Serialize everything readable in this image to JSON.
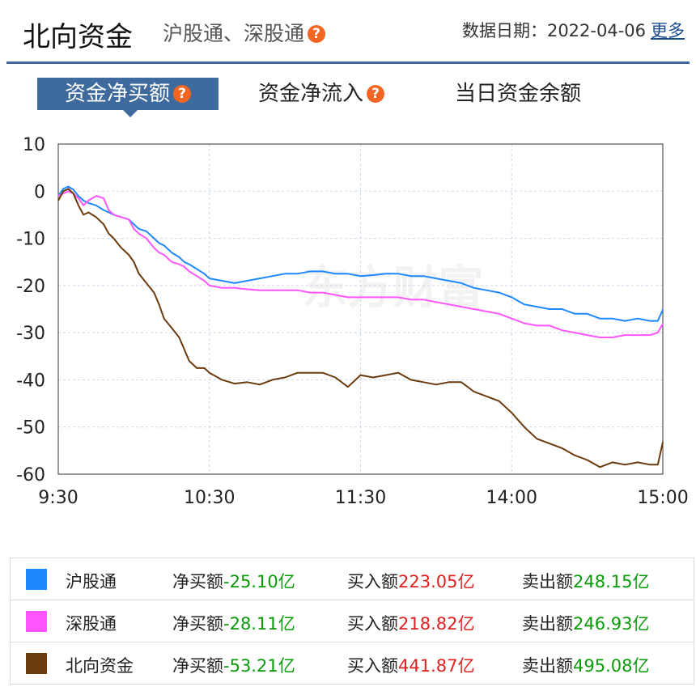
{
  "header": {
    "title": "北向资金",
    "subtitle": "沪股通、深股通",
    "date_label": "数据日期：",
    "date_value": "2022-04-06",
    "more_label": "更多"
  },
  "tabs": [
    {
      "label": "资金净买额",
      "active": true
    },
    {
      "label": "资金净流入",
      "active": false
    },
    {
      "label": "当日资金余额",
      "active": false
    }
  ],
  "watermark": "东方财富",
  "colors": {
    "accent": "#3e6a9d",
    "help_icon": "#f26522",
    "positive": "#e02020",
    "negative": "#0a9a0a"
  },
  "chart_data": {
    "type": "line",
    "x_ticks": [
      "9:30",
      "10:30",
      "11:30",
      "14:00",
      "15:00"
    ],
    "y_ticks": [
      10,
      0,
      -10,
      -20,
      -30,
      -40,
      -50,
      -60
    ],
    "ylim": [
      -60,
      10
    ],
    "xlim": [
      0,
      240
    ],
    "grid": true,
    "x_units": "trading minutes from 9:30 (11:30 and 13:00 share tick position)",
    "series": [
      {
        "name": "沪股通",
        "color": "#1e88ff",
        "x": [
          0,
          2,
          4,
          6,
          8,
          10,
          12,
          15,
          18,
          20,
          22,
          25,
          28,
          30,
          32,
          35,
          38,
          40,
          42,
          45,
          48,
          50,
          52,
          55,
          58,
          60,
          65,
          70,
          75,
          80,
          85,
          90,
          95,
          100,
          105,
          110,
          115,
          120,
          125,
          130,
          135,
          140,
          145,
          150,
          155,
          160,
          165,
          170,
          175,
          180,
          185,
          190,
          195,
          200,
          205,
          210,
          215,
          220,
          225,
          230,
          235,
          238,
          240
        ],
        "values": [
          -1,
          0.5,
          1,
          0.3,
          -1,
          -2,
          -2.5,
          -3,
          -4,
          -4.5,
          -5,
          -5.5,
          -6,
          -7,
          -8,
          -8.5,
          -10,
          -11,
          -11.5,
          -13,
          -14,
          -15,
          -15.5,
          -16.5,
          -17.5,
          -18.5,
          -19,
          -19.5,
          -19,
          -18.5,
          -18,
          -17.5,
          -17.5,
          -17,
          -17,
          -17.5,
          -17.5,
          -18,
          -17.8,
          -17.5,
          -17.5,
          -18,
          -18,
          -18.5,
          -19,
          -19.5,
          -20.5,
          -21,
          -21.5,
          -22.5,
          -24,
          -24.5,
          -25,
          -25,
          -26,
          -26,
          -27,
          -27,
          -27.5,
          -27,
          -27.5,
          -27.5,
          -25.1
        ]
      },
      {
        "name": "深股通",
        "color": "#ff55ff",
        "x": [
          0,
          2,
          4,
          6,
          8,
          10,
          12,
          15,
          18,
          20,
          22,
          25,
          28,
          30,
          32,
          35,
          38,
          40,
          42,
          45,
          48,
          50,
          52,
          55,
          58,
          60,
          65,
          70,
          75,
          80,
          85,
          90,
          95,
          100,
          105,
          110,
          115,
          120,
          125,
          130,
          135,
          140,
          145,
          150,
          155,
          160,
          165,
          170,
          175,
          180,
          185,
          190,
          195,
          200,
          205,
          210,
          215,
          220,
          225,
          230,
          235,
          238,
          240
        ],
        "values": [
          -1,
          -0.5,
          0,
          -0.5,
          -1.5,
          -3,
          -2,
          -1,
          -1.5,
          -4,
          -5,
          -5.5,
          -6,
          -8,
          -9,
          -10,
          -12,
          -13,
          -13.5,
          -15,
          -15.5,
          -16,
          -17,
          -18,
          -19,
          -20,
          -20.5,
          -20.5,
          -20.8,
          -21,
          -21,
          -21,
          -21,
          -21.5,
          -21.5,
          -22,
          -22.5,
          -22.5,
          -22.5,
          -22.5,
          -22.5,
          -23,
          -23,
          -23.5,
          -24,
          -24.5,
          -25,
          -25.5,
          -26,
          -27,
          -28,
          -28.5,
          -28.5,
          -29.5,
          -30,
          -30.5,
          -31,
          -31,
          -30.5,
          -30.5,
          -30.5,
          -30,
          -28.1
        ]
      },
      {
        "name": "北向资金",
        "color": "#6b3a0d",
        "x": [
          0,
          2,
          4,
          6,
          8,
          10,
          12,
          15,
          18,
          20,
          22,
          25,
          28,
          30,
          32,
          35,
          38,
          40,
          42,
          45,
          48,
          50,
          52,
          55,
          58,
          60,
          65,
          70,
          75,
          80,
          85,
          90,
          95,
          100,
          105,
          110,
          115,
          120,
          125,
          130,
          135,
          140,
          145,
          150,
          155,
          160,
          165,
          170,
          175,
          180,
          185,
          190,
          195,
          200,
          205,
          210,
          215,
          220,
          225,
          230,
          235,
          238,
          240
        ],
        "values": [
          -2,
          0,
          0.5,
          -0.5,
          -3,
          -5,
          -4.5,
          -5.5,
          -7,
          -9,
          -10,
          -12,
          -13.5,
          -15,
          -17.5,
          -19.5,
          -21.5,
          -24,
          -27,
          -29,
          -31,
          -33.5,
          -36,
          -37.5,
          -37.5,
          -38.5,
          -40,
          -40.8,
          -40.5,
          -41,
          -40,
          -39.5,
          -38.5,
          -38.5,
          -38.5,
          -39.5,
          -41.5,
          -39,
          -39.5,
          -39,
          -38.5,
          -40,
          -40.5,
          -41,
          -40.5,
          -40.5,
          -42.5,
          -43.5,
          -44.5,
          -47,
          -50,
          -52.5,
          -53.5,
          -54.5,
          -56,
          -57,
          -58.5,
          -57.5,
          -58,
          -57.5,
          -58,
          -58,
          -53.2
        ]
      }
    ]
  },
  "legend": [
    {
      "color": "#1e88ff",
      "name": "沪股通",
      "net_label": "净买额",
      "net_value": "-25.10亿",
      "buy_label": "买入额",
      "buy_value": "223.05亿",
      "sell_label": "卖出额",
      "sell_value": "248.15亿"
    },
    {
      "color": "#ff55ff",
      "name": "深股通",
      "net_label": "净买额",
      "net_value": "-28.11亿",
      "buy_label": "买入额",
      "buy_value": "218.82亿",
      "sell_label": "卖出额",
      "sell_value": "246.93亿"
    },
    {
      "color": "#6b3a0d",
      "name": "北向资金",
      "net_label": "净买额",
      "net_value": "-53.21亿",
      "buy_label": "买入额",
      "buy_value": "441.87亿",
      "sell_label": "卖出额",
      "sell_value": "495.08亿"
    }
  ]
}
